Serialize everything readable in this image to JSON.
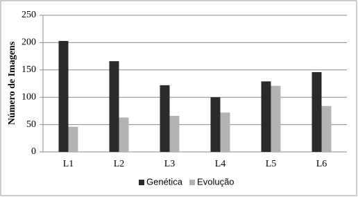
{
  "chart_data": {
    "type": "bar",
    "y_label": "Número de Imagens",
    "categories": [
      "L1",
      "L2",
      "L3",
      "L4",
      "L5",
      "L6"
    ],
    "series": [
      {
        "name": "Genética",
        "color": "#2b2b2b",
        "values": [
          203,
          166,
          122,
          100,
          129,
          146
        ]
      },
      {
        "name": "Evolução",
        "color": "#b3b3b3",
        "values": [
          46,
          63,
          66,
          72,
          121,
          84
        ]
      }
    ],
    "ylim": [
      0,
      250
    ],
    "yticks": [
      0,
      50,
      100,
      150,
      200,
      250
    ],
    "grid": true,
    "legend": "bottom"
  }
}
